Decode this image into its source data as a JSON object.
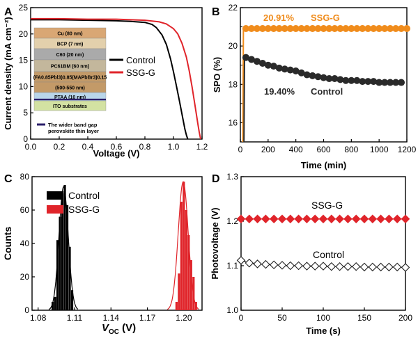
{
  "colors": {
    "control_line": "#000000",
    "ssg_line": "#e0242a",
    "ssg_spo": "#f08c1c",
    "control_spo": "#2a2a2a",
    "hist_control": "#000000",
    "hist_ssg": "#e0242a",
    "ssg_pv": "#e0242a",
    "control_pv": "#222222"
  },
  "chart_data": [
    {
      "panel": "A",
      "type": "line",
      "xlabel": "Voltage (V)",
      "ylabel": "Current density (mA cm⁻²)",
      "xlim": [
        0.0,
        1.2
      ],
      "ylim": [
        0,
        25
      ],
      "xticks": [
        "0.0",
        "0.2",
        "0.4",
        "0.6",
        "0.8",
        "1.0",
        "1.2"
      ],
      "yticks": [
        "0",
        "5",
        "10",
        "15",
        "20",
        "25"
      ],
      "series": [
        {
          "name": "Control",
          "color": "#000000",
          "x": [
            0,
            0.2,
            0.4,
            0.6,
            0.7,
            0.8,
            0.85,
            0.88,
            0.92,
            0.95,
            0.98,
            1.0,
            1.02,
            1.04,
            1.06,
            1.08,
            1.09,
            1.1
          ],
          "y": [
            22.7,
            22.7,
            22.6,
            22.5,
            22.4,
            22.2,
            21.8,
            21.2,
            19.8,
            18.0,
            15.2,
            12.8,
            10.2,
            7.5,
            4.7,
            1.9,
            0.8,
            0
          ]
        },
        {
          "name": "SSG-G",
          "color": "#e0242a",
          "x": [
            0,
            0.2,
            0.4,
            0.6,
            0.7,
            0.8,
            0.9,
            0.95,
            1.0,
            1.03,
            1.06,
            1.09,
            1.11,
            1.13,
            1.15,
            1.17,
            1.18,
            1.19
          ],
          "y": [
            22.9,
            22.9,
            22.8,
            22.8,
            22.7,
            22.6,
            22.3,
            21.9,
            21.0,
            20.0,
            18.2,
            15.6,
            13.0,
            10.0,
            6.5,
            3.0,
            1.4,
            0
          ]
        }
      ],
      "inset": {
        "layers": [
          {
            "label": "Cu (80 nm)",
            "color": "#d9a774"
          },
          {
            "label": "BCP (7 nm)",
            "color": "#e3d0ac"
          },
          {
            "label": "C60 (20 nm)",
            "color": "#aaaaaa"
          },
          {
            "label": "PC61BM (60 nm)",
            "color": "#c3b79c"
          },
          {
            "label": "(FA0.85Pbl3)0.85(MAPbBr3)0.15",
            "color": "#c39a68"
          },
          {
            "label": "(500-550 nm)",
            "color": "#c39a68"
          },
          {
            "label": "PTAA (10 nm)",
            "color": "#b9d6ea"
          },
          {
            "label": "ITO substrates",
            "color": "#d3e2a2"
          }
        ],
        "note_lines": [
          "The wider band gap",
          "perovskite thin layer"
        ]
      }
    },
    {
      "panel": "B",
      "type": "scatter",
      "xlabel": "Time (min)",
      "ylabel": "SPO (%)",
      "xlim": [
        0,
        1200
      ],
      "ylim": [
        15,
        22
      ],
      "xticks": [
        "0",
        "200",
        "400",
        "600",
        "800",
        "1000",
        "1200"
      ],
      "yticks": [
        "16",
        "18",
        "20",
        "22"
      ],
      "annotations": [
        "20.91%",
        "19.40%"
      ],
      "series": [
        {
          "name": "SSG-G",
          "color": "#f08c1c",
          "x": [
            40,
            80,
            120,
            160,
            200,
            240,
            280,
            320,
            360,
            400,
            440,
            480,
            520,
            560,
            600,
            640,
            680,
            720,
            760,
            800,
            840,
            880,
            920,
            960,
            1000,
            1040,
            1080,
            1120,
            1160,
            1200
          ],
          "y": [
            20.91,
            20.91,
            20.91,
            20.91,
            20.91,
            20.91,
            20.91,
            20.91,
            20.91,
            20.91,
            20.91,
            20.91,
            20.91,
            20.91,
            20.91,
            20.91,
            20.91,
            20.91,
            20.91,
            20.91,
            20.91,
            20.91,
            20.91,
            20.91,
            20.91,
            20.91,
            20.91,
            20.91,
            20.91,
            20.91
          ]
        },
        {
          "name": "Control",
          "color": "#2a2a2a",
          "x": [
            40,
            80,
            120,
            160,
            200,
            240,
            280,
            320,
            360,
            400,
            440,
            480,
            520,
            560,
            600,
            640,
            680,
            720,
            760,
            800,
            840,
            880,
            920,
            960,
            1000,
            1040,
            1080,
            1120,
            1160
          ],
          "y": [
            19.4,
            19.3,
            19.2,
            19.1,
            19.0,
            18.95,
            18.85,
            18.8,
            18.75,
            18.7,
            18.6,
            18.5,
            18.45,
            18.4,
            18.35,
            18.3,
            18.3,
            18.25,
            18.2,
            18.2,
            18.2,
            18.15,
            18.15,
            18.15,
            18.1,
            18.1,
            18.1,
            18.1,
            18.1
          ]
        }
      ]
    },
    {
      "panel": "C",
      "type": "bar",
      "xlabel_main": "V",
      "xlabel_sub": "OC",
      "xlabel_unit": " (V)",
      "ylabel": "Counts",
      "xlim": [
        1.075,
        1.215
      ],
      "ylim": [
        0,
        80
      ],
      "xticks": [
        "1.08",
        "1.11",
        "1.14",
        "1.17",
        "1.20"
      ],
      "yticks": [
        "0",
        "20",
        "40",
        "60",
        "80"
      ],
      "series": [
        {
          "name": "Control",
          "color": "#000000",
          "x": [
            1.092,
            1.094,
            1.096,
            1.098,
            1.1,
            1.102,
            1.104,
            1.106,
            1.108
          ],
          "values": [
            5,
            8,
            42,
            56,
            70,
            75,
            63,
            38,
            12
          ],
          "fit_mu": 1.101,
          "fit_sigma": 0.0038,
          "fit_peak": 74
        },
        {
          "name": "SSG-G",
          "color": "#e0242a",
          "x": [
            1.194,
            1.196,
            1.198,
            1.2,
            1.202,
            1.204,
            1.206,
            1.208,
            1.21
          ],
          "values": [
            5,
            22,
            65,
            77,
            60,
            45,
            30,
            20,
            5
          ],
          "fit_mu": 1.1995,
          "fit_sigma": 0.0041,
          "fit_peak": 77
        }
      ]
    },
    {
      "panel": "D",
      "type": "line",
      "xlabel": "Time (s)",
      "ylabel": "Photovoltage (V)",
      "xlim": [
        0,
        200
      ],
      "ylim": [
        1.0,
        1.3
      ],
      "xticks": [
        "0",
        "50",
        "100",
        "150",
        "200"
      ],
      "yticks": [
        "1.0",
        "1.1",
        "1.2",
        "1.3"
      ],
      "annotations": [
        "SSG-G",
        "Control"
      ],
      "series": [
        {
          "name": "SSG-G",
          "color": "#e0242a",
          "marker": "filled-diamond",
          "x": [
            0,
            10,
            20,
            30,
            40,
            50,
            60,
            70,
            80,
            90,
            100,
            110,
            120,
            130,
            140,
            150,
            160,
            170,
            180,
            190,
            200
          ],
          "y": [
            1.205,
            1.205,
            1.205,
            1.205,
            1.205,
            1.205,
            1.205,
            1.205,
            1.205,
            1.205,
            1.205,
            1.205,
            1.205,
            1.205,
            1.205,
            1.205,
            1.205,
            1.205,
            1.205,
            1.205,
            1.205
          ]
        },
        {
          "name": "Control",
          "color": "#222222",
          "marker": "open-diamond",
          "x": [
            0,
            10,
            20,
            30,
            40,
            50,
            60,
            70,
            80,
            90,
            100,
            110,
            120,
            130,
            140,
            150,
            160,
            170,
            180,
            190,
            200
          ],
          "y": [
            1.112,
            1.106,
            1.104,
            1.103,
            1.102,
            1.101,
            1.1,
            1.1,
            1.099,
            1.099,
            1.099,
            1.098,
            1.098,
            1.098,
            1.098,
            1.097,
            1.097,
            1.097,
            1.097,
            1.097,
            1.096
          ]
        }
      ]
    }
  ],
  "panels": {
    "A": {
      "letter": "A"
    },
    "B": {
      "letter": "B"
    },
    "C": {
      "letter": "C"
    },
    "D": {
      "letter": "D"
    }
  }
}
